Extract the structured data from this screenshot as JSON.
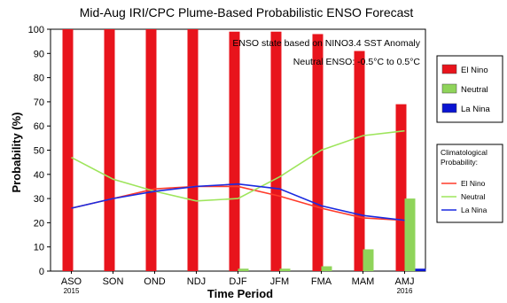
{
  "chart_data": {
    "type": "bar",
    "title": "Mid-Aug IRI/CPC Plume-Based Probabilistic ENSO Forecast",
    "xlabel": "Time Period",
    "ylabel": "Probability (%)",
    "ylim": [
      0,
      100
    ],
    "yticks": [
      0,
      10,
      20,
      30,
      40,
      50,
      60,
      70,
      80,
      90,
      100
    ],
    "categories": [
      "ASO",
      "SON",
      "OND",
      "NDJ",
      "DJF",
      "JFM",
      "FMA",
      "MAM",
      "AMJ"
    ],
    "year_labels": [
      {
        "category": "ASO",
        "label": "2015"
      },
      {
        "category": "AMJ",
        "label": "2016"
      }
    ],
    "grid": false,
    "annotations": [
      "ENSO state based on NINO3.4 SST Anomaly",
      "Neutral ENSO: -0.5°C to 0.5°C"
    ],
    "series": [
      {
        "name": "El Nino",
        "color": "#e8141c",
        "values": [
          100,
          100,
          100,
          100,
          99,
          99,
          98,
          91,
          69
        ]
      },
      {
        "name": "Neutral",
        "color": "#8fd45a",
        "values": [
          0,
          0,
          0,
          0,
          1,
          1,
          2,
          9,
          30
        ]
      },
      {
        "name": "La Nina",
        "color": "#0a14d2",
        "values": [
          0,
          0,
          0,
          0,
          0,
          0,
          0,
          0,
          1
        ]
      }
    ],
    "legend_title": "",
    "climatology_title": "Climatological\nProbability:",
    "climatology": [
      {
        "name": "El Nino",
        "color": "#ff3b2a",
        "values": [
          26,
          30,
          34,
          35,
          35,
          31,
          26,
          22,
          21
        ]
      },
      {
        "name": "Neutral",
        "color": "#9ee55c",
        "values": [
          47,
          38,
          33,
          29,
          30,
          39,
          50,
          56,
          58
        ]
      },
      {
        "name": "La Nina",
        "color": "#1a2ae0",
        "values": [
          26,
          30,
          33,
          35,
          36,
          34,
          27,
          23,
          21
        ]
      }
    ]
  }
}
